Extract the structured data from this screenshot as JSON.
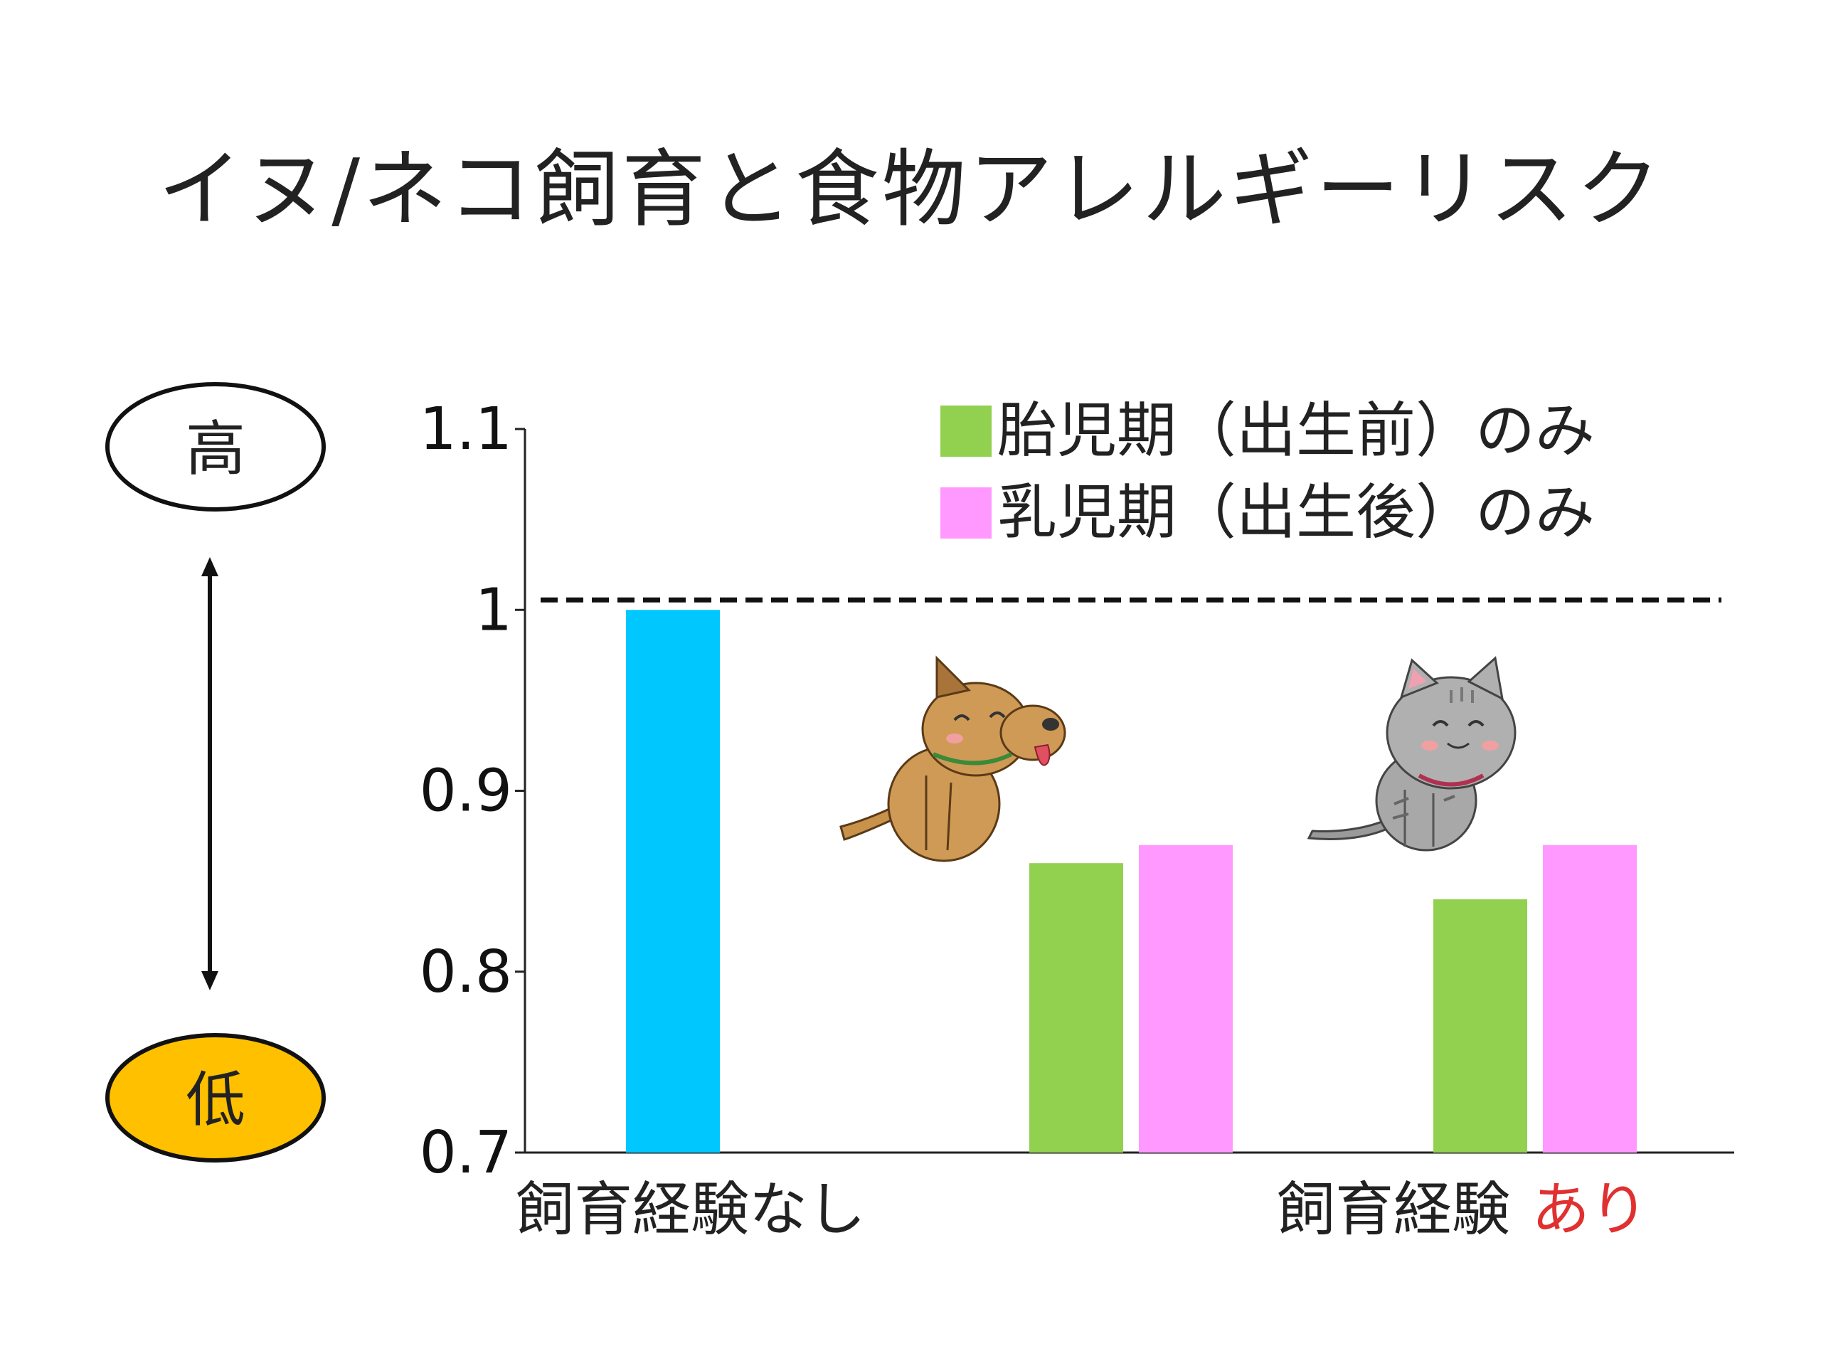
{
  "title": "イヌ/ネコ飼育と食物アレルギーリスク",
  "risk_scale": {
    "high_label": "高",
    "low_label": "低",
    "high_fill": "#ffffff",
    "low_fill": "#ffc000"
  },
  "chart_data": {
    "type": "bar",
    "ylim": [
      0.7,
      1.1
    ],
    "yticks": [
      "0.7",
      "0.8",
      "0.9",
      "1",
      "1.1"
    ],
    "reference_line": 1.0,
    "groups": [
      {
        "label": "飼育経験なし",
        "label_highlight": "",
        "icon": ""
      },
      {
        "label": "",
        "label_highlight": "",
        "icon": "dog-illustration"
      },
      {
        "label": "飼育経験",
        "label_highlight": "あり",
        "icon": "cat-illustration"
      }
    ],
    "series": [
      {
        "name": "",
        "color": "#00c8ff",
        "values": [
          1.0,
          null,
          null
        ]
      },
      {
        "name": "胎児期（出生前）のみ",
        "color": "#92d050",
        "values": [
          null,
          0.86,
          0.84
        ]
      },
      {
        "name": "乳児期（出生後）のみ",
        "color": "#ff99ff",
        "values": [
          null,
          0.87,
          0.87
        ]
      }
    ],
    "highlight_color": "#e03030"
  }
}
